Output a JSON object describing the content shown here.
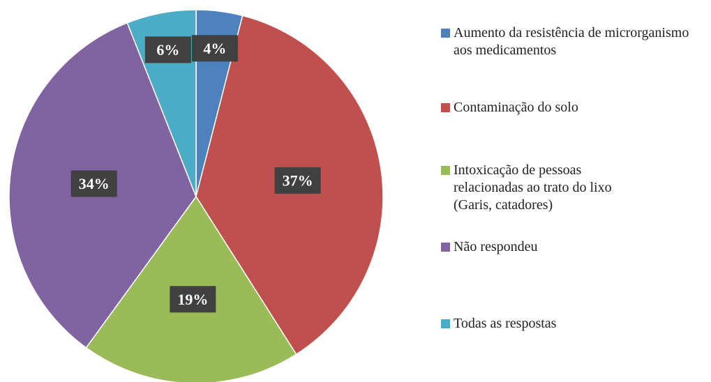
{
  "chart_data": {
    "type": "pie",
    "categories": [
      "Aumento da resistência de microrganismo aos medicamentos",
      "Contaminação do solo",
      "Intoxicação de pessoas relacionadas ao trato do lixo (Garis, catadores)",
      "Não respondeu",
      "Todas as respostas"
    ],
    "values": [
      4,
      37,
      19,
      34,
      6
    ],
    "value_labels": [
      "4%",
      "37%",
      "19%",
      "34%",
      "6%"
    ],
    "colors": [
      "#4f81bd",
      "#c0504d",
      "#9bbb59",
      "#8064a2",
      "#4bacc6"
    ],
    "legend": "right"
  }
}
